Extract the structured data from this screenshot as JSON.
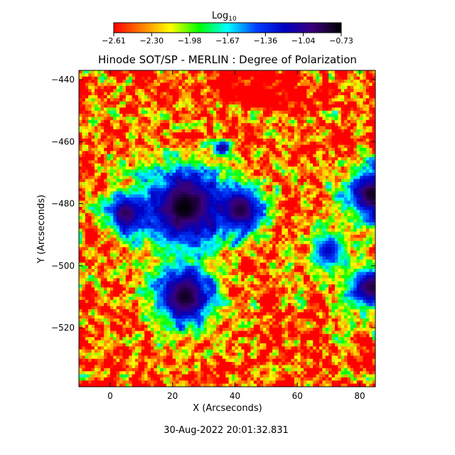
{
  "chart_data": {
    "type": "heatmap",
    "title": "Hinode SOT/SP - MERLIN : Degree of Polarization",
    "xlabel": "X (Arcseconds)",
    "ylabel": "Y (Arcseconds)",
    "xlim": [
      -10,
      85
    ],
    "ylim": [
      -539,
      -437
    ],
    "x_ticks": [
      0,
      20,
      40,
      60,
      80
    ],
    "y_ticks": [
      -440,
      -460,
      -480,
      -500,
      -520
    ],
    "x_tick_labels": [
      "0",
      "20",
      "40",
      "60",
      "80"
    ],
    "y_tick_labels": [
      "−440",
      "−460",
      "−480",
      "−500",
      "−520"
    ],
    "colorbar": {
      "label_main": "Log",
      "label_sub": "10",
      "scale": "log10",
      "range": [
        -2.61,
        -0.73
      ],
      "tick_labels": [
        "−2.61",
        "−2.30",
        "−1.98",
        "−1.67",
        "−1.36",
        "−1.04",
        "−0.73"
      ],
      "colors": [
        "#ff0000",
        "#ff8000",
        "#ffff00",
        "#00ff00",
        "#00ffff",
        "#0040ff",
        "#0000c0",
        "#3a007a",
        "#000000"
      ]
    },
    "features": [
      {
        "x": 24,
        "y": -481,
        "radius": 11,
        "value": -0.75
      },
      {
        "x": 42,
        "y": -482,
        "radius": 6,
        "value": -0.85
      },
      {
        "x": 5,
        "y": -483,
        "radius": 5,
        "value": -0.9
      },
      {
        "x": 24,
        "y": -510,
        "radius": 8,
        "value": -0.8
      },
      {
        "x": 84,
        "y": -477,
        "radius": 7,
        "value": -0.8
      },
      {
        "x": 84,
        "y": -507,
        "radius": 6,
        "value": -0.85
      },
      {
        "x": 36,
        "y": -462,
        "radius": 2,
        "value": -1.0
      },
      {
        "x": 70,
        "y": -495,
        "radius": 5,
        "value": -1.2
      }
    ],
    "timestamp": "30-Aug-2022 20:01:32.831"
  }
}
